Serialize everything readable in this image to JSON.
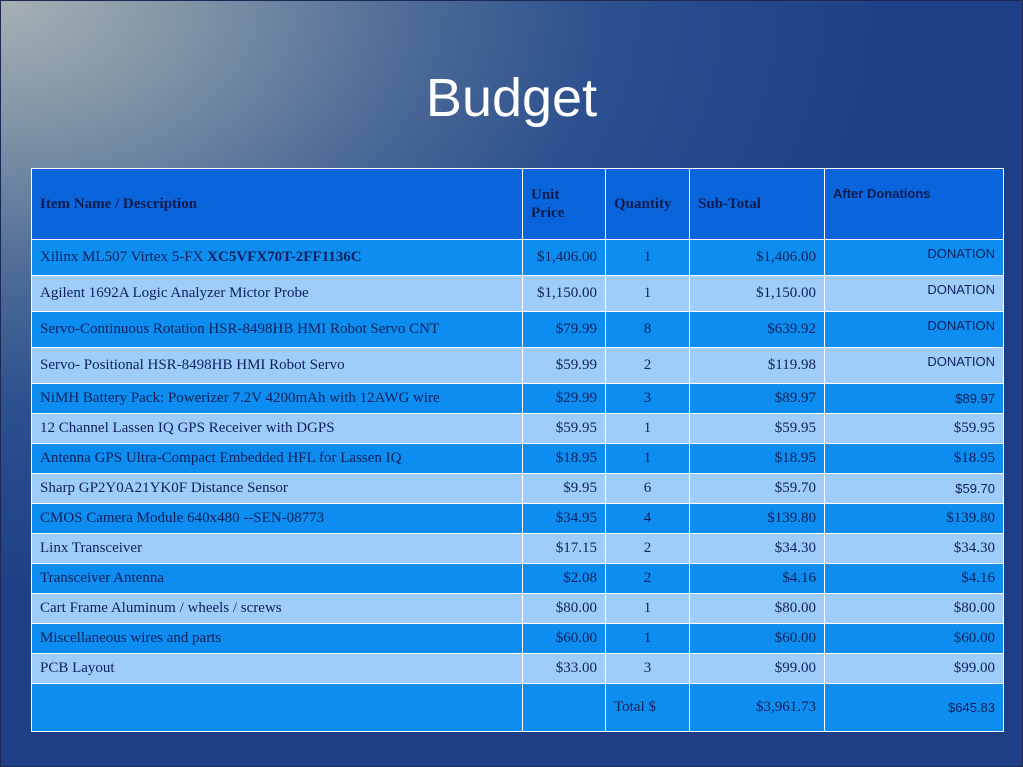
{
  "slide": {
    "title": "Budget"
  },
  "headers": {
    "item": "Item Name / Description",
    "unit_price_line1": "Unit",
    "unit_price_line2": "Price",
    "quantity": "Quantity",
    "subtotal": "Sub-Total",
    "after": "After Donations"
  },
  "rows": [
    {
      "item": "Xilinx ML507 Virtex 5-FX ",
      "item_bold": "XC5VFX70T-2FF1136C",
      "unit": "$1,406.00",
      "qty": "1",
      "subtotal": "$1,406.00",
      "after": "DONATION"
    },
    {
      "item": "Agilent 1692A Logic Analyzer Mictor Probe",
      "unit": "$1,150.00",
      "qty": "1",
      "subtotal": "$1,150.00",
      "after": "DONATION"
    },
    {
      "item": "Servo-Continuous Rotation HSR-8498HB HMI Robot Servo CNT",
      "unit": "$79.99",
      "qty": "8",
      "subtotal": "$639.92",
      "after": "DONATION"
    },
    {
      "item": "Servo- Positional HSR-8498HB HMI Robot Servo",
      "unit": "$59.99",
      "qty": "2",
      "subtotal": "$119.98",
      "after": "DONATION"
    },
    {
      "item": "NiMH Battery Pack: Powerizer 7.2V 4200mAh with 12AWG wire",
      "unit": "$29.99",
      "qty": "3",
      "subtotal": "$89.97",
      "after": "$89.97"
    },
    {
      "item": "12 Channel Lassen IQ GPS Receiver with DGPS",
      "unit": "$59.95",
      "qty": "1",
      "subtotal": "$59.95",
      "after": "$59.95"
    },
    {
      "item": "Antenna GPS Ultra-Compact Embedded HFL for Lassen IQ",
      "unit": "$18.95",
      "qty": "1",
      "subtotal": "$18.95",
      "after": "$18.95"
    },
    {
      "item": "Sharp GP2Y0A21YK0F Distance Sensor",
      "unit": "$9.95",
      "qty": "6",
      "subtotal": "$59.70",
      "after": "$59.70"
    },
    {
      "item": "CMOS Camera Module 640x480 --SEN-08773",
      "unit": "$34.95",
      "qty": "4",
      "subtotal": "$139.80",
      "after": "$139.80"
    },
    {
      "item": "Linx Transceiver",
      "unit": "$17.15",
      "qty": "2",
      "subtotal": "$34.30",
      "after": "$34.30"
    },
    {
      "item": "Transceiver Antenna",
      "unit": "$2.08",
      "qty": "2",
      "subtotal": "$4.16",
      "after": "$4.16"
    },
    {
      "item": "Cart Frame Aluminum / wheels / screws",
      "unit": "$80.00",
      "qty": "1",
      "subtotal": "$80.00",
      "after": "$80.00"
    },
    {
      "item": "Miscellaneous wires and parts",
      "unit": "$60.00",
      "qty": "1",
      "subtotal": "$60.00",
      "after": "$60.00"
    },
    {
      "item": "PCB Layout",
      "unit": "$33.00",
      "qty": "3",
      "subtotal": "$99.00",
      "after": "$99.00"
    }
  ],
  "total": {
    "label": "Total $",
    "subtotal": "$3,961.73",
    "after": "$645.83"
  },
  "colors": {
    "header_bg": "#0a65dc",
    "row_dark": "#0d8df0",
    "row_light": "#9fcdfb",
    "text": "#10205a"
  }
}
